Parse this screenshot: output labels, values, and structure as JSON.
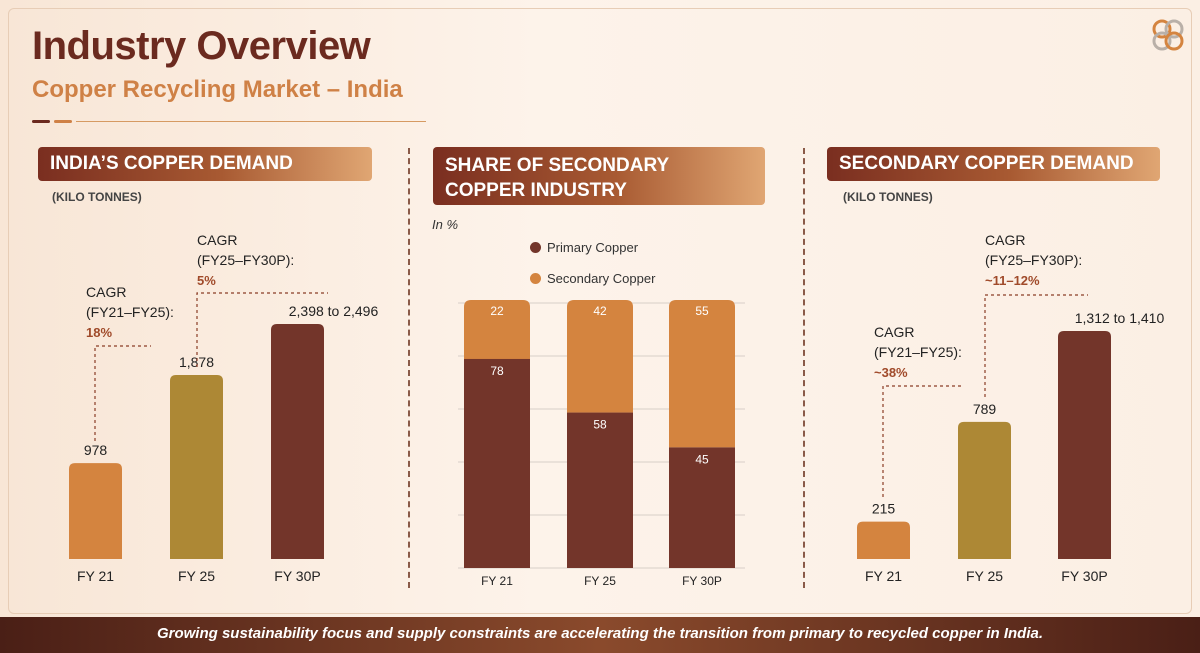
{
  "header": {
    "title": "Industry Overview",
    "subtitle": "Copper Recycling Market – India"
  },
  "footer": {
    "text": "Growing sustainability focus and supply constraints are accelerating the transition from primary to recycled copper in India."
  },
  "colors": {
    "dark_brown": "#73352a",
    "copper": "#d4843f",
    "olive_gold": "#ad8835",
    "accent_text": "#a04a2a"
  },
  "logo_icon": "interlocked-rings-logo",
  "sections": {
    "demand": {
      "heading": "INDIA’S COPPER DEMAND",
      "unit": "(KILO TONNES)"
    },
    "share": {
      "heading_line1": "SHARE OF SECONDARY",
      "heading_line2": "COPPER INDUSTRY",
      "unit": "In %"
    },
    "secondary": {
      "heading": "SECONDARY COPPER DEMAND",
      "unit": "(KILO TONNES)"
    }
  },
  "chart_data": [
    {
      "type": "bar",
      "title": "INDIA’S COPPER DEMAND",
      "ylabel": "(KILO TONNES)",
      "categories": [
        "FY 21",
        "FY 25",
        "FY 30P"
      ],
      "values": [
        978,
        1878,
        2398
      ],
      "value_labels": [
        "978",
        "1,878",
        "2,398 to 2,496"
      ],
      "bar_colors": [
        "#d4843f",
        "#ad8835",
        "#73352a"
      ],
      "ylim": [
        0,
        2600
      ],
      "annotations": [
        {
          "lines": [
            "CAGR",
            "(FY21–FY25):"
          ],
          "value": "18%"
        },
        {
          "lines": [
            "CAGR",
            "(FY25–FY30P):"
          ],
          "value": "5%"
        }
      ]
    },
    {
      "type": "bar",
      "stacked": true,
      "title": "SHARE OF SECONDARY COPPER INDUSTRY",
      "ylabel": "In %",
      "categories": [
        "FY 21",
        "FY 25",
        "FY 30P"
      ],
      "series": [
        {
          "name": "Primary Copper",
          "values": [
            78,
            58,
            45
          ],
          "color": "#73352a"
        },
        {
          "name": "Secondary Copper",
          "values": [
            22,
            42,
            55
          ],
          "color": "#d4843f"
        }
      ],
      "ylim": [
        0,
        100
      ],
      "legend": "top"
    },
    {
      "type": "bar",
      "title": "SECONDARY COPPER DEMAND",
      "ylabel": "(KILO TONNES)",
      "categories": [
        "FY 21",
        "FY 25",
        "FY 30P"
      ],
      "values": [
        215,
        789,
        1312
      ],
      "value_labels": [
        "215",
        "789",
        "1,312 to 1,410"
      ],
      "bar_colors": [
        "#d4843f",
        "#ad8835",
        "#73352a"
      ],
      "ylim": [
        0,
        1420
      ],
      "annotations": [
        {
          "lines": [
            "CAGR",
            "(FY21–FY25):"
          ],
          "value": "~38%"
        },
        {
          "lines": [
            "CAGR",
            "(FY25–FY30P):"
          ],
          "value": "~11–12%"
        }
      ]
    }
  ]
}
